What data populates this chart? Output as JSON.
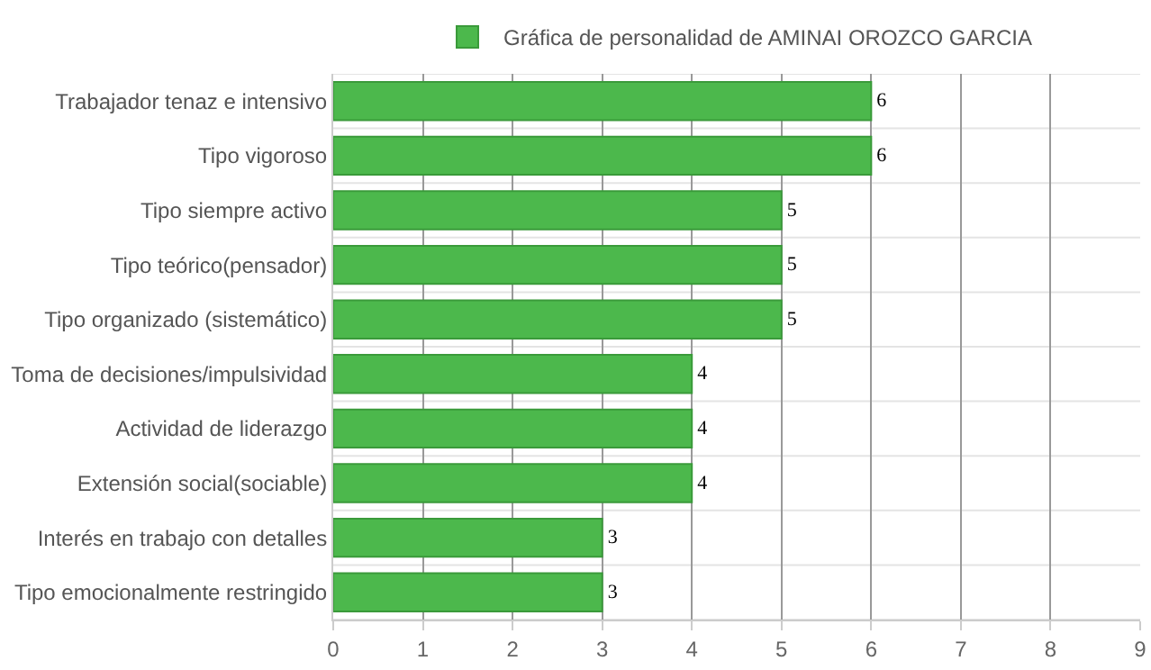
{
  "chart_data": {
    "type": "bar",
    "orientation": "horizontal",
    "categories": [
      "Trabajador tenaz e intensivo",
      "Tipo vigoroso",
      "Tipo siempre activo",
      "Tipo teórico(pensador)",
      "Tipo organizado (sistemático)",
      "Toma de decisiones/impulsividad",
      "Actividad de liderazgo",
      "Extensión social(sociable)",
      "Interés en trabajo con detalles",
      "Tipo emocionalmente restringido"
    ],
    "series": [
      {
        "name": "Gráfica de personalidad de AMINAI OROZCO GARCIA",
        "color": "#4cb84c",
        "values": [
          6,
          6,
          5,
          5,
          5,
          4,
          4,
          4,
          3,
          3
        ]
      }
    ],
    "xlim": [
      0,
      9
    ],
    "xticks": [
      0,
      1,
      2,
      3,
      4,
      5,
      6,
      7,
      8,
      9
    ],
    "grid": true,
    "legend": "top",
    "data_labels": true
  }
}
